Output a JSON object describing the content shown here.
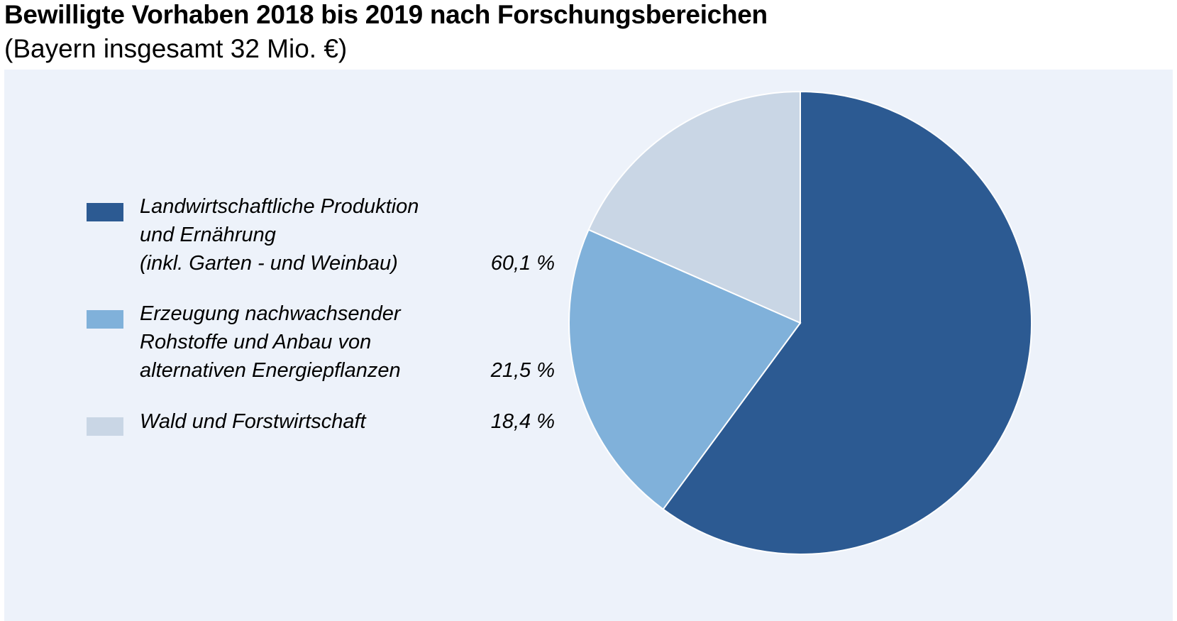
{
  "header": {
    "title": "Bewilligte Vorhaben 2018 bis 2019 nach Forschungsbereichen",
    "subtitle": "(Bayern insgesamt 32 Mio. €)"
  },
  "chart_data": {
    "type": "pie",
    "title": "Bewilligte Vorhaben 2018 bis 2019 nach Forschungsbereichen",
    "subtitle": "(Bayern insgesamt 32 Mio. €)",
    "legend_position": "left",
    "start_angle": "12 o'clock",
    "direction": "clockwise",
    "slices": [
      {
        "label_lines": [
          "Landwirtschaftliche Produktion",
          "und Ernährung",
          "(inkl. Garten - und Weinbau)"
        ],
        "value": 60.1,
        "value_label": "60,1 %",
        "color": "#2c5a92"
      },
      {
        "label_lines": [
          "Erzeugung nachwachsender",
          "Rohstoffe und Anbau von",
          "alternativen Energiepflanzen"
        ],
        "value": 21.5,
        "value_label": "21,5 %",
        "color": "#80b1da"
      },
      {
        "label_lines": [
          "Wald und Forstwirtschaft"
        ],
        "value": 18.4,
        "value_label": "18,4 %",
        "color": "#c9d6e5"
      }
    ]
  }
}
